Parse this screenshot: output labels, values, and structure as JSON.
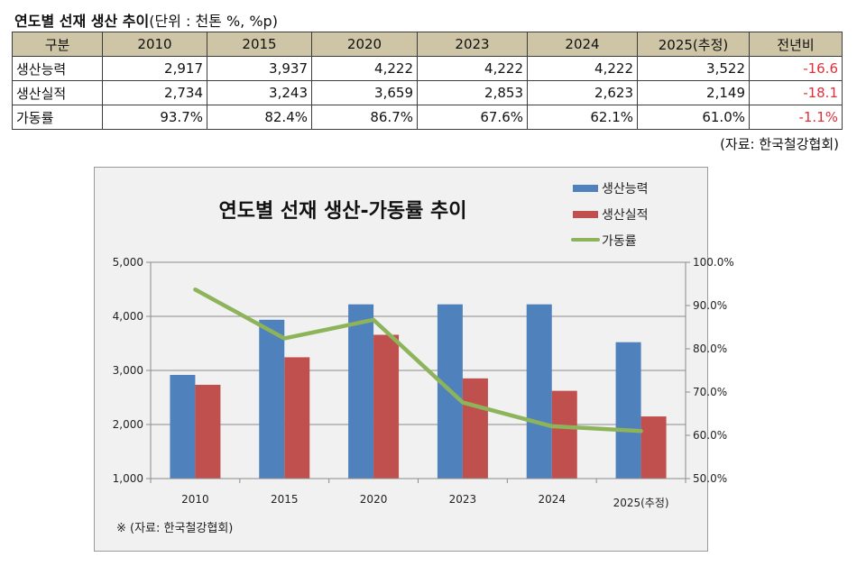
{
  "header": {
    "title": "연도별 선재 생산 추이",
    "unit": "(단위 : 천톤 %, %p)"
  },
  "table": {
    "columns": [
      "구분",
      "2010",
      "2015",
      "2020",
      "2023",
      "2024",
      "2025(추정)",
      "전년비"
    ],
    "rows": [
      {
        "label": "생산능력",
        "values": [
          "2,917",
          "3,937",
          "4,222",
          "4,222",
          "4,222",
          "3,522"
        ],
        "change": "-16.6"
      },
      {
        "label": "생산실적",
        "values": [
          "2,734",
          "3,243",
          "3,659",
          "2,853",
          "2,623",
          "2,149"
        ],
        "change": "-18.1"
      },
      {
        "label": "가동률",
        "values": [
          "93.7%",
          "82.4%",
          "86.7%",
          "67.6%",
          "62.1%",
          "61.0%"
        ],
        "change": "-1.1%"
      }
    ],
    "source": "(자료: 한국철강협회)"
  },
  "colors": {
    "header_bg": "#cdc5a5",
    "negative": "#e0303a",
    "capacity": "#4f81bd",
    "production": "#c0504d",
    "utilization": "#8db45a"
  },
  "chart_data": {
    "type": "bar",
    "title": "연도별 선재 생산-가동률 추이",
    "categories": [
      "2010",
      "2015",
      "2020",
      "2023",
      "2024",
      "2025(추정)"
    ],
    "series": [
      {
        "name": "생산능력",
        "type": "bar",
        "axis": "left",
        "values": [
          2917,
          3937,
          4222,
          4222,
          4222,
          3522
        ]
      },
      {
        "name": "생산실적",
        "type": "bar",
        "axis": "left",
        "values": [
          2734,
          3243,
          3659,
          2853,
          2623,
          2149
        ]
      },
      {
        "name": "가동률",
        "type": "line",
        "axis": "right",
        "values": [
          93.7,
          82.4,
          86.7,
          67.6,
          62.1,
          61.0
        ]
      }
    ],
    "ylim": [
      1000,
      5000
    ],
    "yticks": [
      "1,000",
      "2,000",
      "3,000",
      "4,000",
      "5,000"
    ],
    "y2lim": [
      50,
      100
    ],
    "y2ticks": [
      "50.0%",
      "60.0%",
      "70.0%",
      "80.0%",
      "90.0%",
      "100.0%"
    ],
    "grid": true,
    "legend": "top-right",
    "note": "※ (자료: 한국철강협회)"
  }
}
